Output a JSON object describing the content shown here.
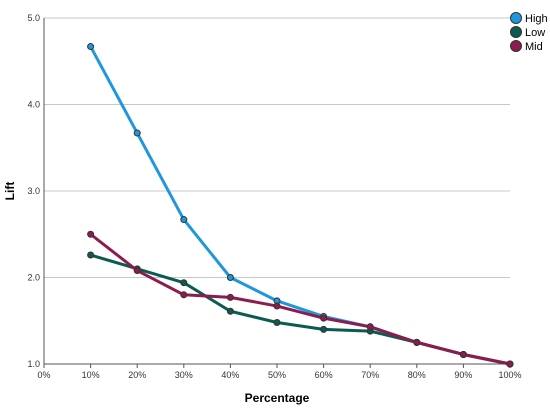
{
  "chart_data": {
    "type": "line",
    "title": "",
    "xlabel": "Percentage",
    "ylabel": "Lift",
    "x": [
      10,
      20,
      30,
      40,
      50,
      60,
      70,
      80,
      90,
      100
    ],
    "x_ticks": [
      "0%",
      "10%",
      "20%",
      "30%",
      "40%",
      "50%",
      "60%",
      "70%",
      "80%",
      "90%",
      "100%"
    ],
    "xlim": [
      0,
      100
    ],
    "y_ticks": [
      "1.0",
      "2.0",
      "3.0",
      "4.0",
      "5.0"
    ],
    "ylim": [
      1.0,
      5.0
    ],
    "grid": "horizontal",
    "legend_position": "top-right",
    "series": [
      {
        "name": "High",
        "color": "#1f97dd",
        "values": [
          4.67,
          3.67,
          2.67,
          2.0,
          1.73,
          1.55,
          1.43,
          1.25,
          1.11,
          1.0
        ]
      },
      {
        "name": "Low",
        "color": "#0b5b52",
        "values": [
          2.26,
          2.1,
          1.94,
          1.61,
          1.48,
          1.4,
          1.38,
          1.25,
          1.11,
          1.0
        ]
      },
      {
        "name": "Mid",
        "color": "#8e1b4e",
        "values": [
          2.5,
          2.08,
          1.8,
          1.77,
          1.67,
          1.53,
          1.43,
          1.25,
          1.11,
          1.0
        ]
      }
    ]
  }
}
